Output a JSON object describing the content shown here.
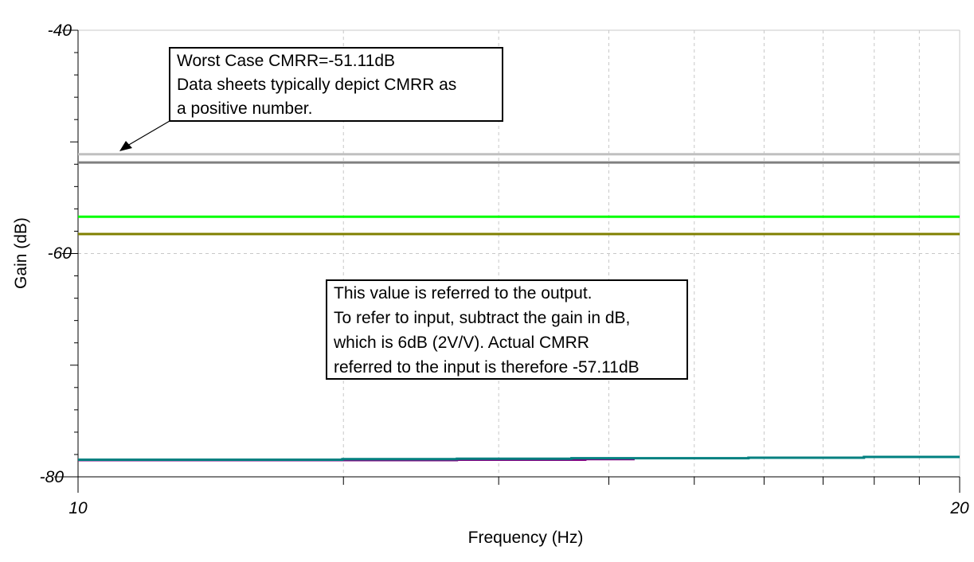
{
  "chart_data": {
    "type": "line",
    "xlabel": "Frequency (Hz)",
    "ylabel": "Gain (dB)",
    "xscale": "log",
    "xlim": [
      10,
      20
    ],
    "ylim": [
      -80,
      -40
    ],
    "x_tick_labels": [
      "10",
      "20"
    ],
    "y_tick_labels": [
      "-40",
      "-60",
      "-80"
    ],
    "y_ticks": [
      -40,
      -60,
      -80
    ],
    "grid": true,
    "series": [
      {
        "color": "#c0c0c0",
        "x": [
          10,
          20
        ],
        "y": [
          -51.11,
          -51.11
        ]
      },
      {
        "color": "#808080",
        "x": [
          10,
          20
        ],
        "y": [
          -51.84,
          -51.84
        ]
      },
      {
        "color": "#00ff00",
        "x": [
          10,
          20
        ],
        "y": [
          -56.7,
          -56.7
        ]
      },
      {
        "color": "#808000",
        "x": [
          10,
          20
        ],
        "y": [
          -58.25,
          -58.25
        ]
      },
      {
        "color": "#800080",
        "x": [
          10,
          13.47,
          13.47,
          14.9,
          14.9,
          15.49
        ],
        "y": [
          -78.5,
          -78.5,
          -78.47,
          -78.47,
          -78.42,
          -78.42
        ]
      },
      {
        "color": "#008080",
        "x": [
          10,
          12.31,
          12.31,
          13.47,
          13.47,
          14.74,
          14.74,
          16.94,
          16.94,
          18.55,
          18.55,
          20
        ],
        "y": [
          -78.47,
          -78.47,
          -78.42,
          -78.42,
          -78.38,
          -78.38,
          -78.33,
          -78.33,
          -78.29,
          -78.29,
          -78.22,
          -78.22
        ]
      }
    ],
    "annotations": [
      {
        "lines": [
          "Worst Case CMRR=-51.11dB",
          "Data sheets typically depict CMRR as",
          "a positive number."
        ],
        "arrow_to": {
          "x": 10.4,
          "y": -51.11
        }
      },
      {
        "lines": [
          "This value is referred to the output.",
          "To refer to input, subtract the gain in dB,",
          "which is 6dB (2V/V).  Actual CMRR",
          "referred to the input is therefore -57.11dB"
        ]
      }
    ]
  }
}
